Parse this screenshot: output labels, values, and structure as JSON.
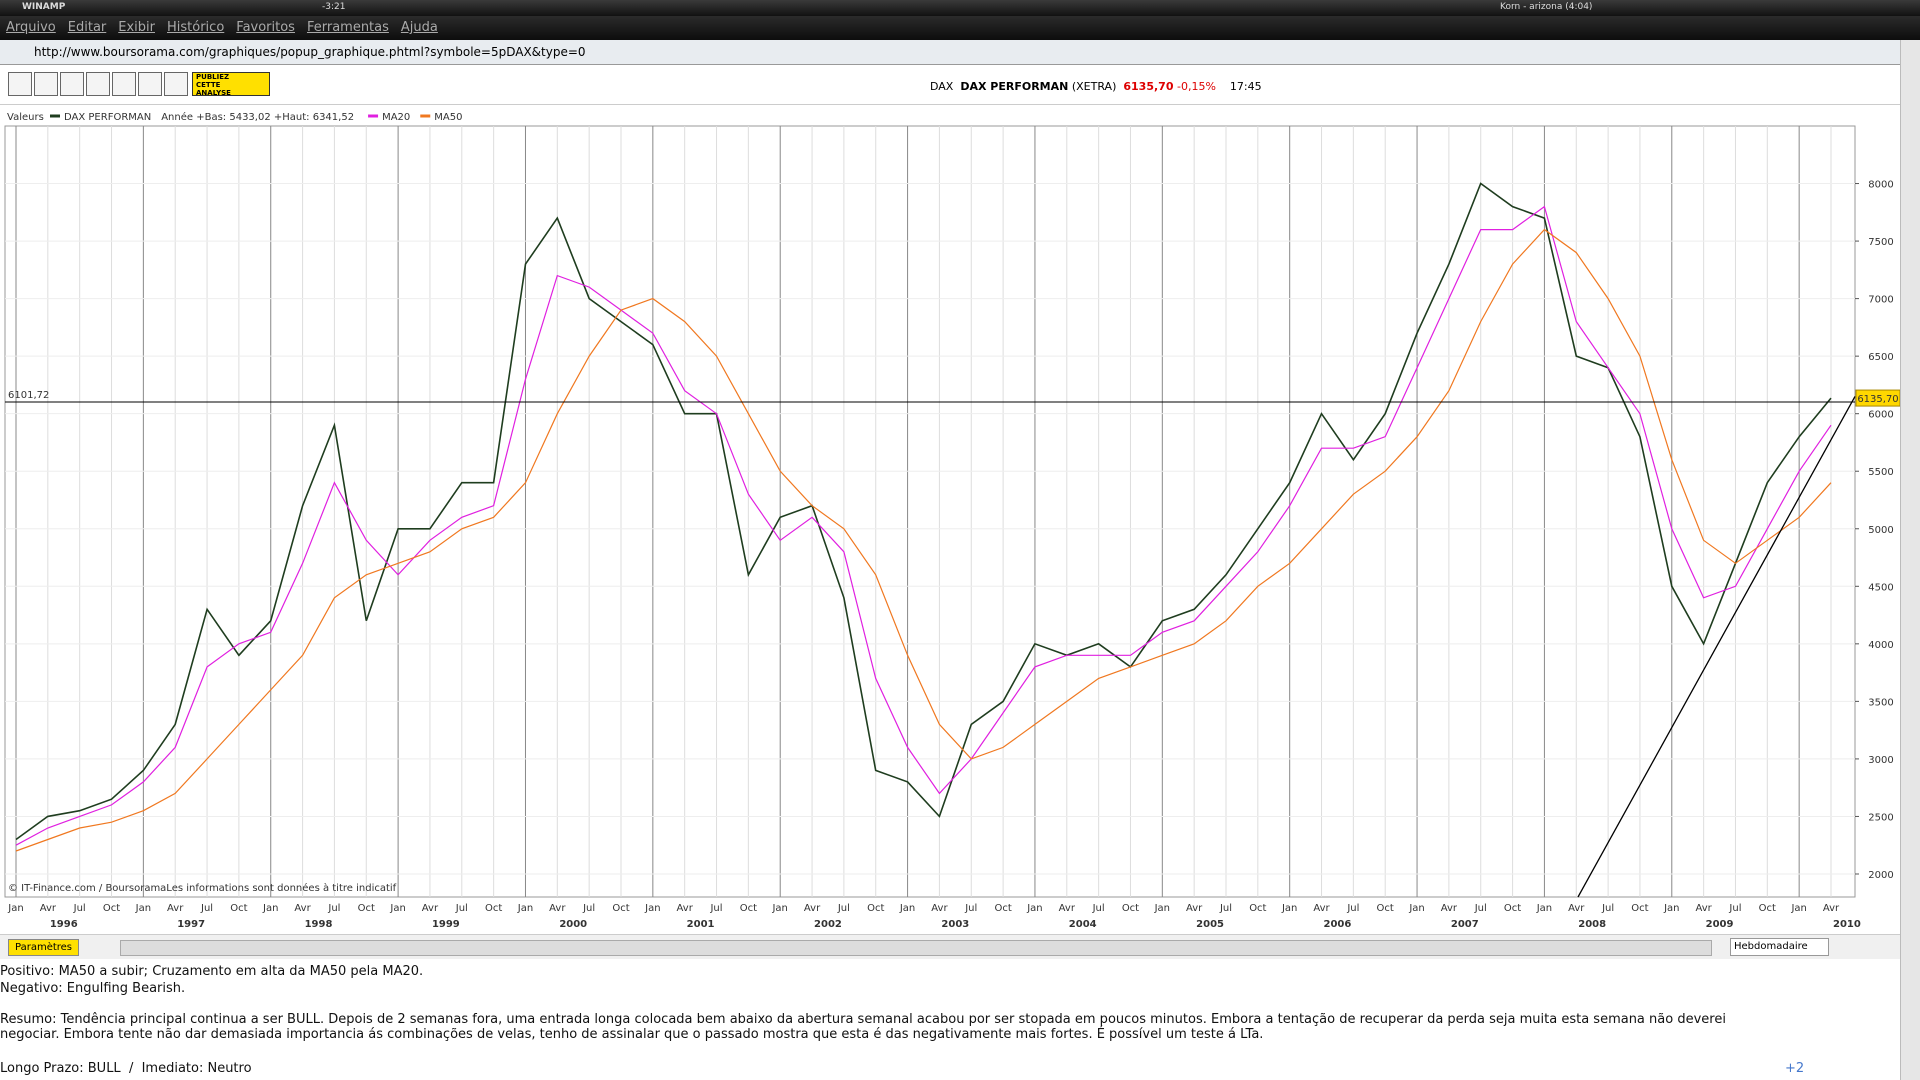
{
  "winamp": {
    "title": "WINAMP",
    "time": "-3:21",
    "track": "Korn - arizona (4:04)"
  },
  "menu": [
    "Arquivo",
    "Editar",
    "Exibir",
    "Histórico",
    "Favoritos",
    "Ferramentas",
    "Ajuda"
  ],
  "address": "http://www.boursorama.com/graphiques/popup_graphique.phtml?symbole=5pDAX&type=0",
  "toolbar": {
    "banner": [
      "PUBLIEZ",
      "CETTE",
      "ANALYSE"
    ]
  },
  "quote": {
    "market": "DAX",
    "name": "DAX PERFORMAN",
    "exchange": "(XETRA)",
    "price": "6135,70",
    "change": "-0,15%",
    "time": "17:45"
  },
  "chart_data": {
    "type": "line",
    "legend_title": "Valeurs",
    "range_note": "Année +Bas: 5433,02 +Haut: 6341,52",
    "credit": "© IT-Finance.com / BoursoramaLes informations sont données à titre indicatif",
    "categories": [
      "Jan",
      "Avr",
      "Jul",
      "Oct",
      "Jan",
      "Avr",
      "Jul",
      "Oct",
      "Jan",
      "Avr",
      "Jul",
      "Oct",
      "Jan",
      "Avr",
      "Jul",
      "Oct",
      "Jan",
      "Avr",
      "Jul",
      "Oct",
      "Jan",
      "Avr",
      "Jul",
      "Oct",
      "Jan",
      "Avr",
      "Jul",
      "Oct",
      "Jan",
      "Avr",
      "Jul",
      "Oct",
      "Jan",
      "Avr",
      "Jul",
      "Oct",
      "Jan",
      "Avr",
      "Jul",
      "Oct",
      "Jan",
      "Avr",
      "Jul",
      "Oct",
      "Jan",
      "Avr",
      "Jul",
      "Oct",
      "Jan",
      "Avr",
      "Jul",
      "Oct",
      "Jan",
      "Avr",
      "Jul",
      "Oct",
      "Jan",
      "Avr"
    ],
    "years": [
      "1996",
      "1997",
      "1998",
      "1999",
      "2000",
      "2001",
      "2002",
      "2003",
      "2004",
      "2005",
      "2006",
      "2007",
      "2008",
      "2009",
      "2010"
    ],
    "series": [
      {
        "name": "DAX PERFORMAN",
        "color": "#1f3d1f",
        "values": [
          2300,
          2500,
          2550,
          2650,
          2900,
          3300,
          4300,
          3900,
          4200,
          5200,
          5900,
          4200,
          5000,
          5000,
          5400,
          5400,
          7300,
          7700,
          7000,
          6800,
          6600,
          6000,
          6000,
          4600,
          5100,
          5200,
          4400,
          2900,
          2800,
          2500,
          3300,
          3500,
          4000,
          3900,
          4000,
          3800,
          4200,
          4300,
          4600,
          5000,
          5400,
          6000,
          5600,
          6000,
          6700,
          7300,
          8000,
          7800,
          7700,
          6500,
          6400,
          5800,
          4500,
          4000,
          4700,
          5400,
          5800,
          6135.7
        ]
      },
      {
        "name": "MA20",
        "color": "#e020e0",
        "values": [
          2250,
          2400,
          2500,
          2600,
          2800,
          3100,
          3800,
          4000,
          4100,
          4700,
          5400,
          4900,
          4600,
          4900,
          5100,
          5200,
          6300,
          7200,
          7100,
          6900,
          6700,
          6200,
          6000,
          5300,
          4900,
          5100,
          4800,
          3700,
          3100,
          2700,
          3000,
          3400,
          3800,
          3900,
          3900,
          3900,
          4100,
          4200,
          4500,
          4800,
          5200,
          5700,
          5700,
          5800,
          6400,
          7000,
          7600,
          7600,
          7800,
          6800,
          6400,
          6000,
          5000,
          4400,
          4500,
          5000,
          5500,
          5900
        ]
      },
      {
        "name": "MA50",
        "color": "#f07820",
        "values": [
          2200,
          2300,
          2400,
          2450,
          2550,
          2700,
          3000,
          3300,
          3600,
          3900,
          4400,
          4600,
          4700,
          4800,
          5000,
          5100,
          5400,
          6000,
          6500,
          6900,
          7000,
          6800,
          6500,
          6000,
          5500,
          5200,
          5000,
          4600,
          3900,
          3300,
          3000,
          3100,
          3300,
          3500,
          3700,
          3800,
          3900,
          4000,
          4200,
          4500,
          4700,
          5000,
          5300,
          5500,
          5800,
          6200,
          6800,
          7300,
          7600,
          7400,
          7000,
          6500,
          5600,
          4900,
          4700,
          4900,
          5100,
          5400
        ]
      }
    ],
    "ylim": [
      1800,
      8500
    ],
    "yticks": [
      2000,
      2500,
      3000,
      3500,
      4000,
      4500,
      5000,
      5500,
      6000,
      6500,
      7000,
      7500,
      8000
    ],
    "grid": true,
    "reference_line": {
      "value": 6101.72,
      "label": "6101,72"
    },
    "last_price": {
      "value": 6135.7,
      "label": "6135,70"
    }
  },
  "controls": {
    "params": "Paramètres",
    "period": "Hebdomadaire"
  },
  "analysis": {
    "positive": "Positivo: MA50 a subir; Cruzamento em alta da MA50 pela MA20.",
    "negative": "Negativo: Engulfing Bearish.",
    "summary": "Resumo: Tendência principal continua a ser BULL. Depois de 2 semanas fora, uma entrada longa colocada bem abaixo da abertura semanal acabou por ser stopada em poucos minutos. Embora a tentação de recuperar da perda seja muita esta semana não deverei negociar. Embora tente não dar demasiada importancia ás combinações de velas, tenho de assinalar que o passado mostra que esta é das negativamente mais fortes. É possível um teste á LTa.",
    "outlook": "Longo Prazo: BULL  /  Imediato: Neutro",
    "count": "+2"
  }
}
